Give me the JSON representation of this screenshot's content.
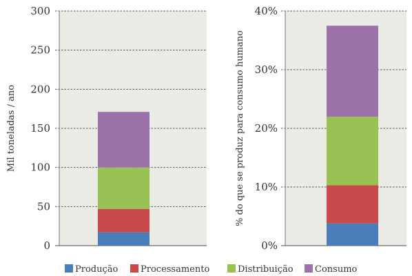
{
  "chart_data": [
    {
      "type": "bar",
      "stacked": true,
      "title": "",
      "xlabel": "",
      "ylabel": "Mil toneladas / ano",
      "ylim": [
        0,
        300
      ],
      "yticks": [
        "0",
        "50",
        "100",
        "150",
        "200",
        "250",
        "300"
      ],
      "grid": true,
      "categories": [
        ""
      ],
      "series": [
        {
          "name": "Produção",
          "values": [
            17
          ]
        },
        {
          "name": "Processamento",
          "values": [
            30
          ]
        },
        {
          "name": "Distribuição",
          "values": [
            53
          ]
        },
        {
          "name": "Consumo",
          "values": [
            71
          ]
        }
      ]
    },
    {
      "type": "bar",
      "stacked": true,
      "title": "",
      "xlabel": "",
      "ylabel": "% do que se produz para consumo humano",
      "ylim": [
        0,
        40
      ],
      "yticks": [
        "0%",
        "10%",
        "20%",
        "30%",
        "40%"
      ],
      "grid": true,
      "categories": [
        ""
      ],
      "series": [
        {
          "name": "Produção",
          "values": [
            3.8
          ]
        },
        {
          "name": "Processamento",
          "values": [
            6.5
          ]
        },
        {
          "name": "Distribuição",
          "values": [
            11.7
          ]
        },
        {
          "name": "Consumo",
          "values": [
            15.5
          ]
        }
      ]
    }
  ],
  "legend": {
    "placement": "bottom",
    "items": [
      {
        "label": "Produção",
        "color": "#4a7ebb"
      },
      {
        "label": "Processamento",
        "color": "#c94a4a"
      },
      {
        "label": "Distribuição",
        "color": "#98c354"
      },
      {
        "label": "Consumo",
        "color": "#9b73aa"
      }
    ]
  },
  "colors": {
    "plot_background": "#ebebe6",
    "gridline": "#555555"
  }
}
